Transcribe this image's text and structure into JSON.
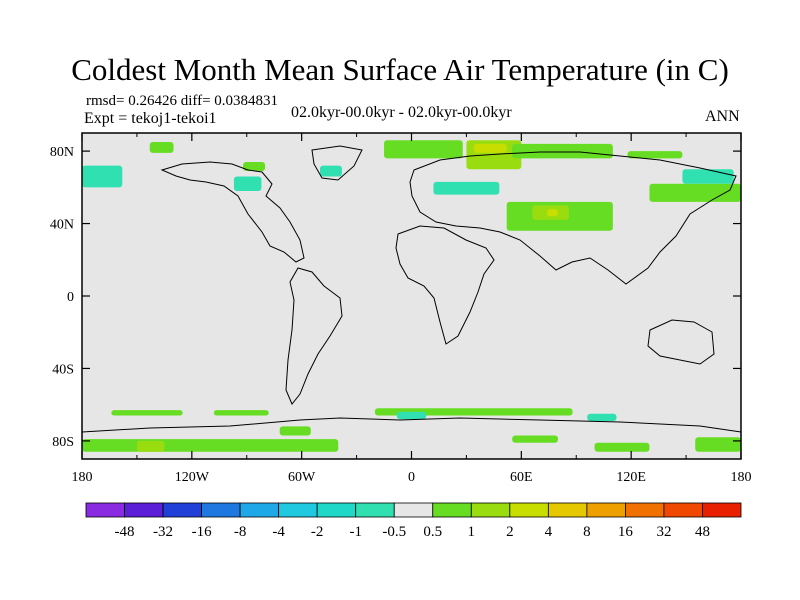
{
  "chart_data": {
    "type": "heatmap",
    "title": "Coldest Month Mean Surface Air Temperature (in C)",
    "left_string_top": "rmsd= 0.26426 diff= 0.0384831",
    "left_string_bottom": "Expt = tekoj1-tekoi1",
    "center_string": "02.0kyr-00.0kyr - 02.0kyr-00.0kyr",
    "right_string": "ANN",
    "x_range": [
      -180,
      180
    ],
    "y_range": [
      -90,
      90
    ],
    "x_ticks": [
      {
        "value": -180,
        "label": "180"
      },
      {
        "value": -120,
        "label": "120W"
      },
      {
        "value": -60,
        "label": "60W"
      },
      {
        "value": 0,
        "label": "0"
      },
      {
        "value": 60,
        "label": "60E"
      },
      {
        "value": 120,
        "label": "120E"
      },
      {
        "value": 180,
        "label": "180"
      }
    ],
    "y_ticks": [
      {
        "value": 80,
        "label": "80N"
      },
      {
        "value": 40,
        "label": "40N"
      },
      {
        "value": 0,
        "label": "0"
      },
      {
        "value": -40,
        "label": "40S"
      },
      {
        "value": -80,
        "label": "80S"
      }
    ],
    "colorbar": {
      "labels": [
        "-48",
        "-32",
        "-16",
        "-8",
        "-4",
        "-2",
        "-1",
        "-0.5",
        "0.5",
        "1",
        "2",
        "4",
        "8",
        "16",
        "32",
        "48"
      ],
      "colors": [
        "#8a2be2",
        "#5a1fd6",
        "#2040d8",
        "#1f78e0",
        "#1ea8e8",
        "#20c8e0",
        "#20d8c8",
        "#30e0b0",
        "#e6e6e6",
        "#66dd22",
        "#99dd11",
        "#c8dd00",
        "#e6c800",
        "#eea000",
        "#f07000",
        "#f04800",
        "#e82000"
      ]
    },
    "background_color": "#e6e6e6",
    "anomaly_regions": [
      {
        "color": "#30e0b0",
        "lon": [
          -180,
          -158
        ],
        "lat": [
          60,
          72
        ]
      },
      {
        "color": "#66dd22",
        "lon": [
          -143,
          -130
        ],
        "lat": [
          79,
          85
        ]
      },
      {
        "color": "#30e0b0",
        "lon": [
          -97,
          -82
        ],
        "lat": [
          58,
          66
        ]
      },
      {
        "color": "#66dd22",
        "lon": [
          -92,
          -80
        ],
        "lat": [
          69,
          74
        ]
      },
      {
        "color": "#30e0b0",
        "lon": [
          -50,
          -38
        ],
        "lat": [
          66,
          72
        ]
      },
      {
        "color": "#66dd22",
        "lon": [
          -15,
          28
        ],
        "lat": [
          76,
          86
        ]
      },
      {
        "color": "#99dd11",
        "lon": [
          30,
          60
        ],
        "lat": [
          70,
          86
        ]
      },
      {
        "color": "#c8dd00",
        "lon": [
          34,
          52
        ],
        "lat": [
          79,
          84
        ]
      },
      {
        "color": "#66dd22",
        "lon": [
          55,
          110
        ],
        "lat": [
          76,
          84
        ]
      },
      {
        "color": "#66dd22",
        "lon": [
          118,
          148
        ],
        "lat": [
          76,
          80
        ]
      },
      {
        "color": "#30e0b0",
        "lon": [
          12,
          48
        ],
        "lat": [
          56,
          63
        ]
      },
      {
        "color": "#66dd22",
        "lon": [
          52,
          110
        ],
        "lat": [
          36,
          52
        ]
      },
      {
        "color": "#99dd11",
        "lon": [
          66,
          86
        ],
        "lat": [
          42,
          50
        ]
      },
      {
        "color": "#c8dd00",
        "lon": [
          74,
          80
        ],
        "lat": [
          44,
          48
        ]
      },
      {
        "color": "#66dd22",
        "lon": [
          130,
          180
        ],
        "lat": [
          52,
          62
        ]
      },
      {
        "color": "#30e0b0",
        "lon": [
          148,
          176
        ],
        "lat": [
          62,
          70
        ]
      },
      {
        "color": "#66dd22",
        "lon": [
          -164,
          -125
        ],
        "lat": [
          -66,
          -63
        ]
      },
      {
        "color": "#66dd22",
        "lon": [
          -108,
          -78
        ],
        "lat": [
          -66,
          -63
        ]
      },
      {
        "color": "#66dd22",
        "lon": [
          -20,
          88
        ],
        "lat": [
          -66,
          -62
        ]
      },
      {
        "color": "#30e0b0",
        "lon": [
          -8,
          8
        ],
        "lat": [
          -68,
          -64
        ]
      },
      {
        "color": "#30e0b0",
        "lon": [
          96,
          112
        ],
        "lat": [
          -69,
          -65
        ]
      },
      {
        "color": "#66dd22",
        "lon": [
          -180,
          -40
        ],
        "lat": [
          -86,
          -79
        ]
      },
      {
        "color": "#99dd11",
        "lon": [
          -150,
          -135
        ],
        "lat": [
          -86,
          -80
        ]
      },
      {
        "color": "#66dd22",
        "lon": [
          -72,
          -55
        ],
        "lat": [
          -77,
          -72
        ]
      },
      {
        "color": "#66dd22",
        "lon": [
          55,
          80
        ],
        "lat": [
          -81,
          -77
        ]
      },
      {
        "color": "#66dd22",
        "lon": [
          100,
          130
        ],
        "lat": [
          -86,
          -81
        ]
      },
      {
        "color": "#66dd22",
        "lon": [
          155,
          180
        ],
        "lat": [
          -86,
          -78
        ]
      }
    ]
  }
}
